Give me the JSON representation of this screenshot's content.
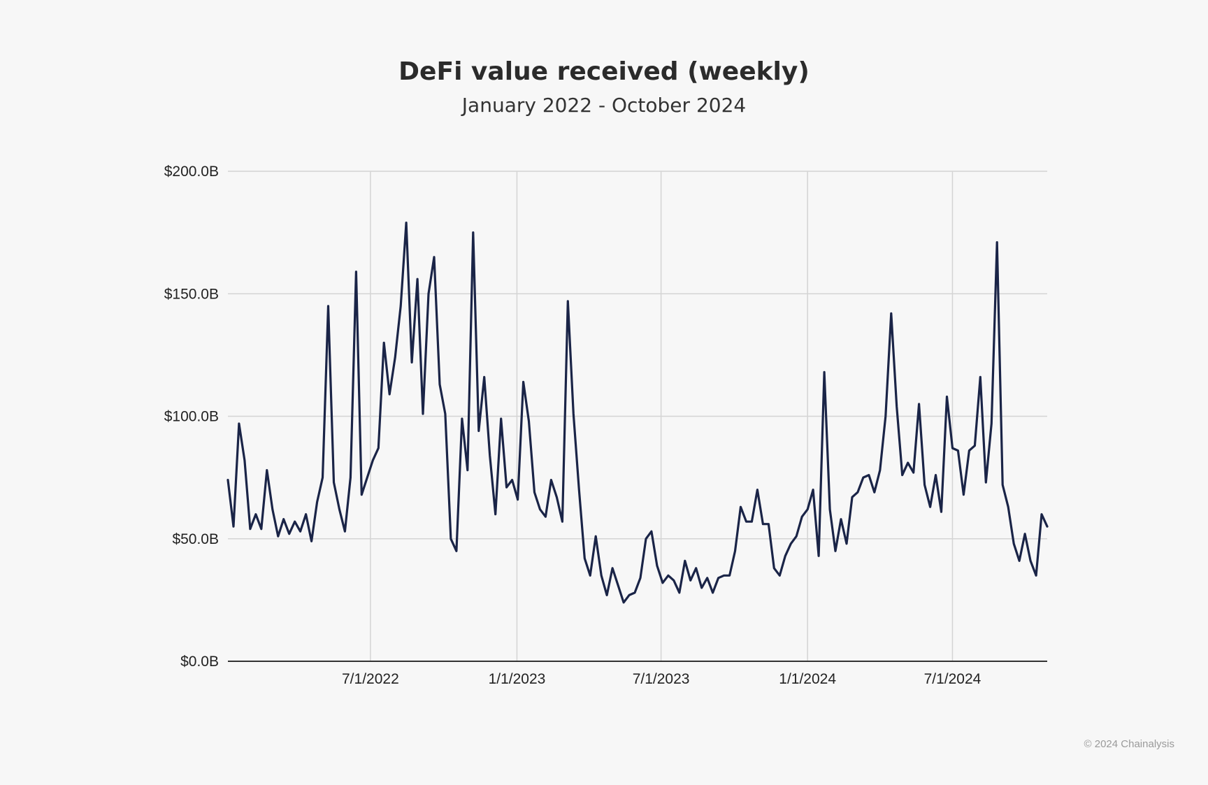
{
  "chart_data": {
    "type": "line",
    "title": "DeFi value received (weekly)",
    "subtitle": "January 2022  - October 2024",
    "xlabel": "",
    "ylabel": "",
    "ylim": [
      0,
      200
    ],
    "xlim": [
      "2022-01-03",
      "2024-10-14"
    ],
    "y_ticks": [
      "$0.0B",
      "$50.0B",
      "$100.0B",
      "$150.0B",
      "$200.0B"
    ],
    "y_tick_values": [
      0,
      50,
      100,
      150,
      200
    ],
    "x_ticks": [
      "7/1/2022",
      "1/1/2023",
      "7/1/2023",
      "1/1/2024",
      "7/1/2024"
    ],
    "x_tick_dates": [
      "2022-07-01",
      "2023-01-01",
      "2023-07-01",
      "2024-01-01",
      "2024-07-01"
    ],
    "grid": true,
    "line_color": "#1a2447",
    "series": [
      {
        "values": [
          [
            "2022-01-03",
            74
          ],
          [
            "2022-01-10",
            55
          ],
          [
            "2022-01-17",
            97
          ],
          [
            "2022-01-24",
            82
          ],
          [
            "2022-01-31",
            54
          ],
          [
            "2022-02-07",
            60
          ],
          [
            "2022-02-14",
            54
          ],
          [
            "2022-02-21",
            78
          ],
          [
            "2022-02-28",
            62
          ],
          [
            "2022-03-07",
            51
          ],
          [
            "2022-03-14",
            58
          ],
          [
            "2022-03-21",
            52
          ],
          [
            "2022-03-28",
            57
          ],
          [
            "2022-04-04",
            53
          ],
          [
            "2022-04-11",
            60
          ],
          [
            "2022-04-18",
            49
          ],
          [
            "2022-04-25",
            65
          ],
          [
            "2022-05-02",
            75
          ],
          [
            "2022-05-09",
            145
          ],
          [
            "2022-05-16",
            73
          ],
          [
            "2022-05-23",
            62
          ],
          [
            "2022-05-30",
            53
          ],
          [
            "2022-06-06",
            75
          ],
          [
            "2022-06-13",
            159
          ],
          [
            "2022-06-20",
            68
          ],
          [
            "2022-06-27",
            75
          ],
          [
            "2022-07-04",
            82
          ],
          [
            "2022-07-11",
            87
          ],
          [
            "2022-07-18",
            130
          ],
          [
            "2022-07-25",
            109
          ],
          [
            "2022-08-01",
            124
          ],
          [
            "2022-08-08",
            145
          ],
          [
            "2022-08-15",
            179
          ],
          [
            "2022-08-22",
            122
          ],
          [
            "2022-08-29",
            156
          ],
          [
            "2022-09-05",
            101
          ],
          [
            "2022-09-12",
            150
          ],
          [
            "2022-09-19",
            165
          ],
          [
            "2022-09-26",
            113
          ],
          [
            "2022-10-03",
            101
          ],
          [
            "2022-10-10",
            50
          ],
          [
            "2022-10-17",
            45
          ],
          [
            "2022-10-24",
            99
          ],
          [
            "2022-10-31",
            78
          ],
          [
            "2022-11-07",
            175
          ],
          [
            "2022-11-14",
            94
          ],
          [
            "2022-11-21",
            116
          ],
          [
            "2022-11-28",
            84
          ],
          [
            "2022-12-05",
            60
          ],
          [
            "2022-12-12",
            99
          ],
          [
            "2022-12-19",
            71
          ],
          [
            "2022-12-26",
            74
          ],
          [
            "2023-01-02",
            66
          ],
          [
            "2023-01-09",
            114
          ],
          [
            "2023-01-16",
            98
          ],
          [
            "2023-01-23",
            69
          ],
          [
            "2023-01-30",
            62
          ],
          [
            "2023-02-06",
            59
          ],
          [
            "2023-02-13",
            74
          ],
          [
            "2023-02-20",
            67
          ],
          [
            "2023-02-27",
            57
          ],
          [
            "2023-03-06",
            147
          ],
          [
            "2023-03-13",
            101
          ],
          [
            "2023-03-20",
            70
          ],
          [
            "2023-03-27",
            42
          ],
          [
            "2023-04-03",
            35
          ],
          [
            "2023-04-10",
            51
          ],
          [
            "2023-04-17",
            35
          ],
          [
            "2023-04-24",
            27
          ],
          [
            "2023-05-01",
            38
          ],
          [
            "2023-05-08",
            31
          ],
          [
            "2023-05-15",
            24
          ],
          [
            "2023-05-22",
            27
          ],
          [
            "2023-05-29",
            28
          ],
          [
            "2023-06-05",
            34
          ],
          [
            "2023-06-12",
            50
          ],
          [
            "2023-06-19",
            53
          ],
          [
            "2023-06-26",
            39
          ],
          [
            "2023-07-03",
            32
          ],
          [
            "2023-07-10",
            35
          ],
          [
            "2023-07-17",
            33
          ],
          [
            "2023-07-24",
            28
          ],
          [
            "2023-07-31",
            41
          ],
          [
            "2023-08-07",
            33
          ],
          [
            "2023-08-14",
            38
          ],
          [
            "2023-08-21",
            30
          ],
          [
            "2023-08-28",
            34
          ],
          [
            "2023-09-04",
            28
          ],
          [
            "2023-09-11",
            34
          ],
          [
            "2023-09-18",
            35
          ],
          [
            "2023-09-25",
            35
          ],
          [
            "2023-10-02",
            45
          ],
          [
            "2023-10-09",
            63
          ],
          [
            "2023-10-16",
            57
          ],
          [
            "2023-10-23",
            57
          ],
          [
            "2023-10-30",
            70
          ],
          [
            "2023-11-06",
            56
          ],
          [
            "2023-11-13",
            56
          ],
          [
            "2023-11-20",
            38
          ],
          [
            "2023-11-27",
            35
          ],
          [
            "2023-12-04",
            43
          ],
          [
            "2023-12-11",
            48
          ],
          [
            "2023-12-18",
            51
          ],
          [
            "2023-12-25",
            59
          ],
          [
            "2024-01-01",
            62
          ],
          [
            "2024-01-08",
            70
          ],
          [
            "2024-01-15",
            43
          ],
          [
            "2024-01-22",
            118
          ],
          [
            "2024-01-29",
            62
          ],
          [
            "2024-02-05",
            45
          ],
          [
            "2024-02-12",
            58
          ],
          [
            "2024-02-19",
            48
          ],
          [
            "2024-02-26",
            67
          ],
          [
            "2024-03-04",
            69
          ],
          [
            "2024-03-11",
            75
          ],
          [
            "2024-03-18",
            76
          ],
          [
            "2024-03-25",
            69
          ],
          [
            "2024-04-01",
            78
          ],
          [
            "2024-04-08",
            100
          ],
          [
            "2024-04-15",
            142
          ],
          [
            "2024-04-22",
            104
          ],
          [
            "2024-04-29",
            76
          ],
          [
            "2024-05-06",
            81
          ],
          [
            "2024-05-13",
            77
          ],
          [
            "2024-05-20",
            105
          ],
          [
            "2024-05-27",
            72
          ],
          [
            "2024-06-03",
            63
          ],
          [
            "2024-06-10",
            76
          ],
          [
            "2024-06-17",
            61
          ],
          [
            "2024-06-24",
            108
          ],
          [
            "2024-07-01",
            87
          ],
          [
            "2024-07-08",
            86
          ],
          [
            "2024-07-15",
            68
          ],
          [
            "2024-07-22",
            86
          ],
          [
            "2024-07-29",
            88
          ],
          [
            "2024-08-05",
            116
          ],
          [
            "2024-08-12",
            73
          ],
          [
            "2024-08-19",
            97
          ],
          [
            "2024-08-26",
            171
          ],
          [
            "2024-09-02",
            72
          ],
          [
            "2024-09-09",
            63
          ],
          [
            "2024-09-16",
            48
          ],
          [
            "2024-09-23",
            41
          ],
          [
            "2024-09-30",
            52
          ],
          [
            "2024-10-07",
            41
          ],
          [
            "2024-10-14",
            35
          ],
          [
            "2024-10-21",
            60
          ],
          [
            "2024-10-28",
            55
          ]
        ]
      }
    ]
  },
  "footer": {
    "copyright": "© 2024 Chainalysis"
  }
}
